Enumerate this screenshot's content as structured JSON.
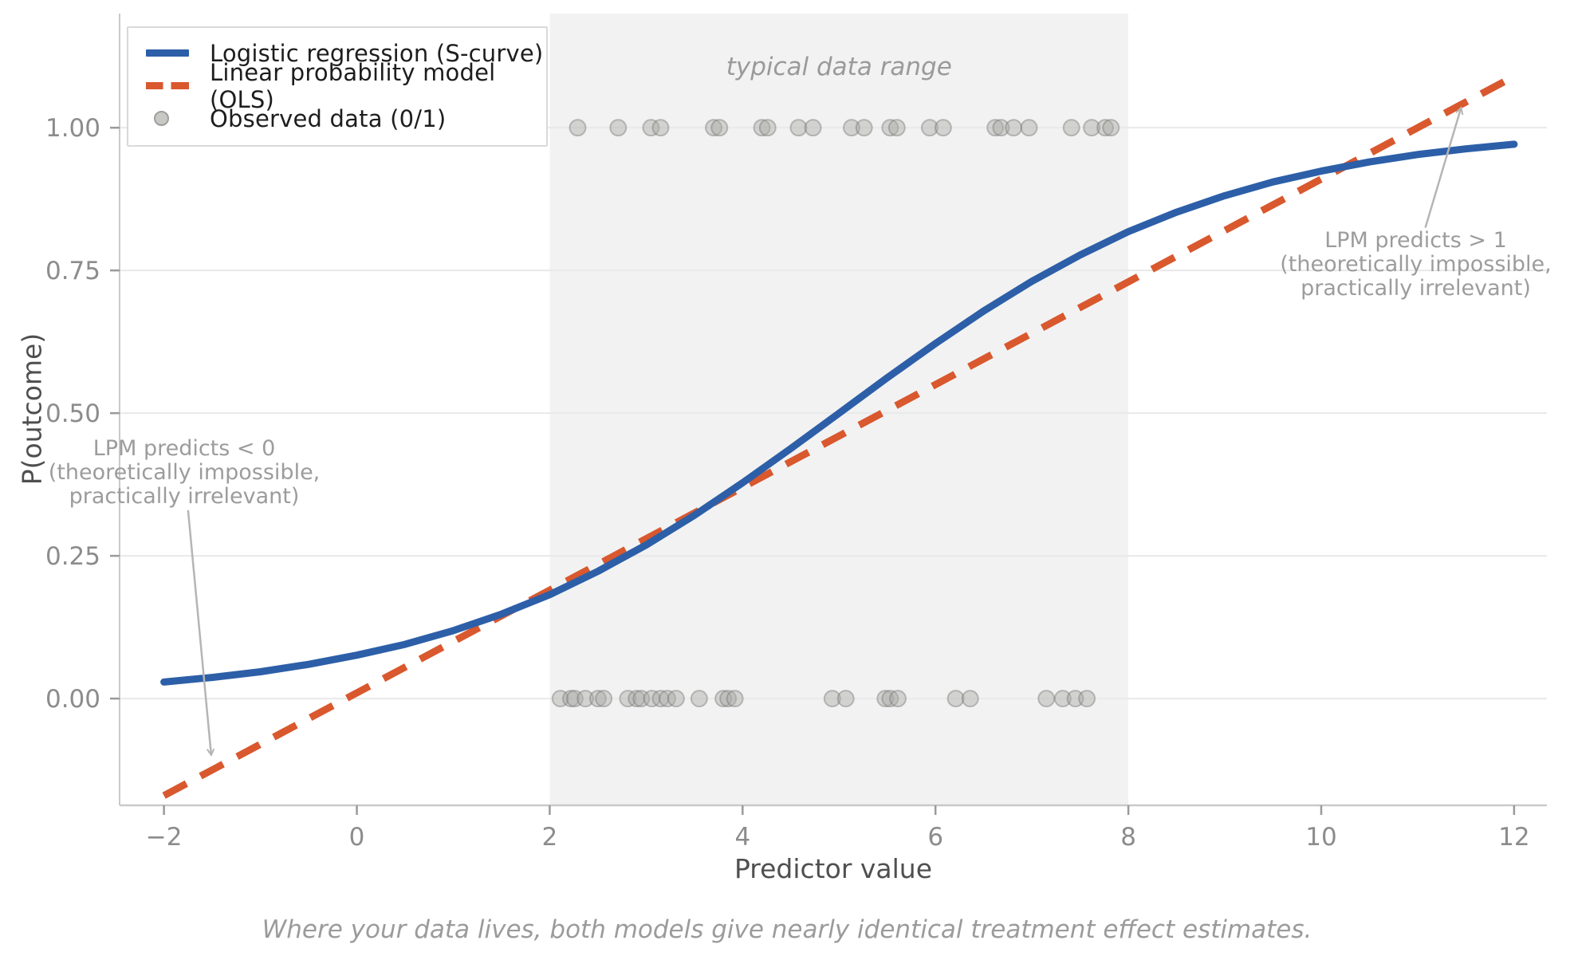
{
  "figure": {
    "caption": "Where your data lives, both models give nearly identical treatment effect estimates.",
    "background": "#ffffff"
  },
  "chart_data": {
    "type": "line",
    "title": "",
    "xlabel": "Predictor value",
    "ylabel": "P(outcome)",
    "x_range": [
      -2.46,
      12.34
    ],
    "y_range": [
      -0.187,
      1.2
    ],
    "x_ticks": [
      -2,
      0,
      2,
      4,
      6,
      8,
      10,
      12
    ],
    "x_tick_labels": [
      "−2",
      "0",
      "2",
      "4",
      "6",
      "8",
      "10",
      "12"
    ],
    "y_ticks": [
      0,
      0.25,
      0.5,
      0.75,
      1.0
    ],
    "y_tick_labels": [
      "0.00",
      "0.25",
      "0.50",
      "0.75",
      "1.00"
    ],
    "grid": "horizontal",
    "legend_position": "upper left",
    "style": {
      "grid_color": "#e9e9e9",
      "spine_color": "#c9c9c9",
      "tick_color": "#9a9a9a",
      "tick_label_color": "#8c8c8c",
      "arrow_color": "#b5b5b5"
    },
    "shaded_region": {
      "x0": 2,
      "x1": 8,
      "label": "typical data range",
      "color": "#f2f2f2"
    },
    "series": [
      {
        "name": "Logistic regression (S-curve)",
        "type": "line",
        "line_style": "solid",
        "color": "#2d5fa8",
        "formula": "P = 1 / (1 + exp(-0.5*(x - 5)))",
        "points": [
          [
            -2,
            0.029
          ],
          [
            -1.5,
            0.037
          ],
          [
            -1,
            0.047
          ],
          [
            -0.5,
            0.06
          ],
          [
            0,
            0.076
          ],
          [
            0.5,
            0.095
          ],
          [
            1,
            0.119
          ],
          [
            1.5,
            0.148
          ],
          [
            2,
            0.182
          ],
          [
            2.5,
            0.223
          ],
          [
            3,
            0.269
          ],
          [
            3.5,
            0.321
          ],
          [
            4,
            0.378
          ],
          [
            4.5,
            0.438
          ],
          [
            5,
            0.5
          ],
          [
            5.5,
            0.562
          ],
          [
            6,
            0.622
          ],
          [
            6.5,
            0.679
          ],
          [
            7,
            0.731
          ],
          [
            7.5,
            0.777
          ],
          [
            8,
            0.818
          ],
          [
            8.5,
            0.852
          ],
          [
            9,
            0.881
          ],
          [
            9.5,
            0.905
          ],
          [
            10,
            0.924
          ],
          [
            10.5,
            0.94
          ],
          [
            11,
            0.953
          ],
          [
            11.5,
            0.963
          ],
          [
            12,
            0.971
          ]
        ]
      },
      {
        "name": "Linear probability model (OLS)",
        "type": "line",
        "line_style": "dashed",
        "color": "#d9582e",
        "formula": "P = 0.01 + 0.09*x",
        "points": [
          [
            -2,
            -0.17
          ],
          [
            12,
            1.09
          ]
        ]
      },
      {
        "name": "Observed data (0/1)",
        "type": "scatter",
        "fill": "rgba(170,170,167,0.45)",
        "edge": "rgba(110,110,110,0.40)",
        "legend_fill": "#c8c8c5",
        "legend_edge": "#9e9e9e",
        "y1_x": [
          2.29,
          2.71,
          3.05,
          3.15,
          3.7,
          3.76,
          4.2,
          4.26,
          4.58,
          4.73,
          5.13,
          5.26,
          5.53,
          5.6,
          5.94,
          6.08,
          6.62,
          6.68,
          6.81,
          6.97,
          7.41,
          7.62,
          7.76,
          7.82
        ],
        "y0_x": [
          2.11,
          2.22,
          2.26,
          2.37,
          2.5,
          2.56,
          2.81,
          2.9,
          2.95,
          3.06,
          3.15,
          3.22,
          3.31,
          3.55,
          3.8,
          3.85,
          3.92,
          4.93,
          5.07,
          5.48,
          5.53,
          5.61,
          6.21,
          6.36,
          7.15,
          7.32,
          7.45,
          7.57
        ]
      }
    ],
    "annotations": [
      {
        "id": "lpm-gt-1",
        "lines": [
          "LPM predicts > 1",
          "(theoretically impossible,",
          "practically irrelevant)"
        ],
        "text_xy": [
          10.98,
          0.805
        ],
        "arrow_from": [
          11.08,
          0.825
        ],
        "arrow_to": [
          11.45,
          1.035
        ]
      },
      {
        "id": "lpm-lt-0",
        "lines": [
          "LPM predicts < 0",
          "(theoretically impossible,",
          "practically irrelevant)"
        ],
        "text_xy": [
          -1.79,
          0.44
        ],
        "arrow_from": [
          -1.75,
          0.33
        ],
        "arrow_to": [
          -1.51,
          -0.099
        ]
      }
    ]
  }
}
